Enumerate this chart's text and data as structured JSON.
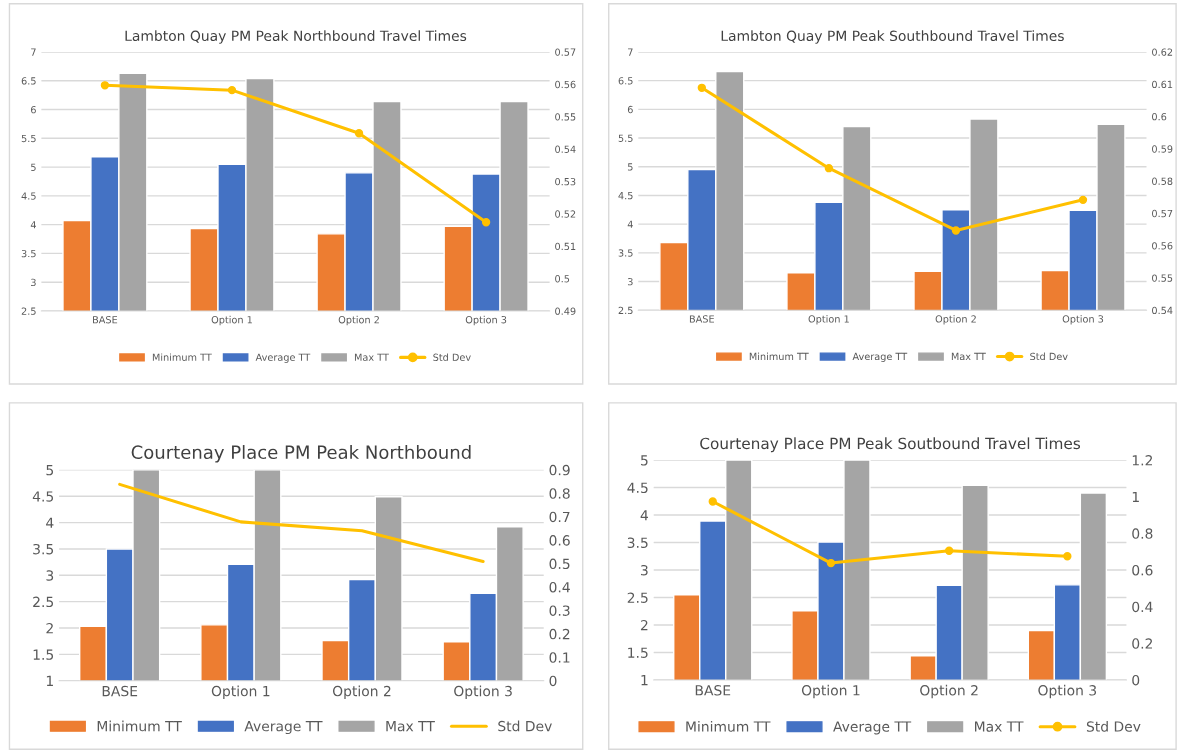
{
  "chart_data": [
    {
      "type": "bar",
      "title": "Lambton Quay PM Peak Northbound Travel Times",
      "categories": [
        "BASE",
        "Option 1",
        "Option 2",
        "Option 3"
      ],
      "series": [
        {
          "name": "Minimum TT",
          "color": "#ed7d31",
          "values": [
            4.07,
            3.93,
            3.84,
            3.97
          ]
        },
        {
          "name": "Average TT",
          "color": "#4472c4",
          "values": [
            5.18,
            5.05,
            4.9,
            4.88
          ]
        },
        {
          "name": "Max TT",
          "color": "#a5a5a5",
          "values": [
            6.63,
            6.54,
            6.14,
            6.14
          ]
        },
        {
          "name": "Std Dev",
          "color": "#ffc000",
          "type": "line",
          "axis": "y2",
          "marker": "circle",
          "values": [
            0.5597,
            0.5582,
            0.5449,
            0.5174
          ]
        }
      ],
      "ylim": [
        2.5,
        7
      ],
      "yticks": [
        2.5,
        3,
        3.5,
        4,
        4.5,
        5,
        5.5,
        6,
        6.5,
        7
      ],
      "y2lim": [
        0.49,
        0.57
      ],
      "y2ticks": [
        0.49,
        0.5,
        0.51,
        0.52,
        0.53,
        0.54,
        0.55,
        0.56,
        0.57
      ],
      "grid": "y",
      "legend": "bottom"
    },
    {
      "type": "bar",
      "title": "Lambton Quay PM Peak Southbound Travel Times",
      "categories": [
        "BASE",
        "Option 1",
        "Option 2",
        "Option 3"
      ],
      "series": [
        {
          "name": "Minimum TT",
          "color": "#ed7d31",
          "values": [
            3.68,
            3.15,
            3.18,
            3.19
          ]
        },
        {
          "name": "Average TT",
          "color": "#4472c4",
          "values": [
            4.95,
            4.38,
            4.25,
            4.24
          ]
        },
        {
          "name": "Max TT",
          "color": "#a5a5a5",
          "values": [
            6.66,
            5.7,
            5.83,
            5.74
          ]
        },
        {
          "name": "Std Dev",
          "color": "#ffc000",
          "type": "line",
          "axis": "y2",
          "marker": "circle",
          "values": [
            0.6089,
            0.584,
            0.5647,
            0.5742
          ]
        }
      ],
      "ylim": [
        2.5,
        7
      ],
      "yticks": [
        2.5,
        3,
        3.5,
        4,
        4.5,
        5,
        5.5,
        6,
        6.5,
        7
      ],
      "y2lim": [
        0.54,
        0.62
      ],
      "y2ticks": [
        0.54,
        0.55,
        0.56,
        0.57,
        0.58,
        0.59,
        0.6,
        0.61,
        0.62
      ],
      "grid": "y",
      "legend": "bottom"
    },
    {
      "type": "bar",
      "title": "Courtenay Place PM Peak Northbound",
      "categories": [
        "BASE",
        "Option 1",
        "Option 2",
        "Option 3"
      ],
      "series": [
        {
          "name": "Minimum TT",
          "color": "#ed7d31",
          "values": [
            2.03,
            2.06,
            1.76,
            1.74
          ]
        },
        {
          "name": "Average TT",
          "color": "#4472c4",
          "values": [
            3.5,
            3.21,
            2.92,
            2.66
          ]
        },
        {
          "name": "Max TT",
          "color": "#a5a5a5",
          "values": [
            5,
            5,
            4.49,
            3.92
          ]
        },
        {
          "name": "Std Dev",
          "color": "#ffc000",
          "type": "line",
          "axis": "y2",
          "marker": "none",
          "values": [
            0.838,
            0.678,
            0.64,
            0.509
          ]
        }
      ],
      "ylim": [
        1,
        5
      ],
      "yticks": [
        1,
        1.5,
        2,
        2.5,
        3,
        3.5,
        4,
        4.5,
        5
      ],
      "y2lim": [
        0,
        0.9
      ],
      "y2ticks": [
        0,
        0.1,
        0.2,
        0.3,
        0.4,
        0.5,
        0.6,
        0.7,
        0.8,
        0.9
      ],
      "grid": "y",
      "legend": "bottom"
    },
    {
      "type": "bar",
      "title": "Courtenay Place PM Peak Soutbound Travel Times",
      "categories": [
        "BASE",
        "Option 1",
        "Option 2",
        "Option 3"
      ],
      "series": [
        {
          "name": "Minimum TT",
          "color": "#ed7d31",
          "values": [
            2.55,
            2.26,
            1.44,
            1.9
          ]
        },
        {
          "name": "Average TT",
          "color": "#4472c4",
          "values": [
            3.89,
            3.51,
            2.72,
            2.73
          ]
        },
        {
          "name": "Max TT",
          "color": "#a5a5a5",
          "values": [
            5,
            5,
            4.54,
            4.4
          ]
        },
        {
          "name": "Std Dev",
          "color": "#ffc000",
          "type": "line",
          "axis": "y2",
          "marker": "circle",
          "values": [
            0.974,
            0.638,
            0.705,
            0.675
          ]
        }
      ],
      "ylim": [
        1,
        5
      ],
      "yticks": [
        1,
        1.5,
        2,
        2.5,
        3,
        3.5,
        4,
        4.5,
        5
      ],
      "y2lim": [
        0,
        1.2
      ],
      "y2ticks": [
        0,
        0.2,
        0.4,
        0.6,
        0.8,
        1,
        1.2
      ],
      "grid": "y",
      "legend": "bottom"
    }
  ]
}
